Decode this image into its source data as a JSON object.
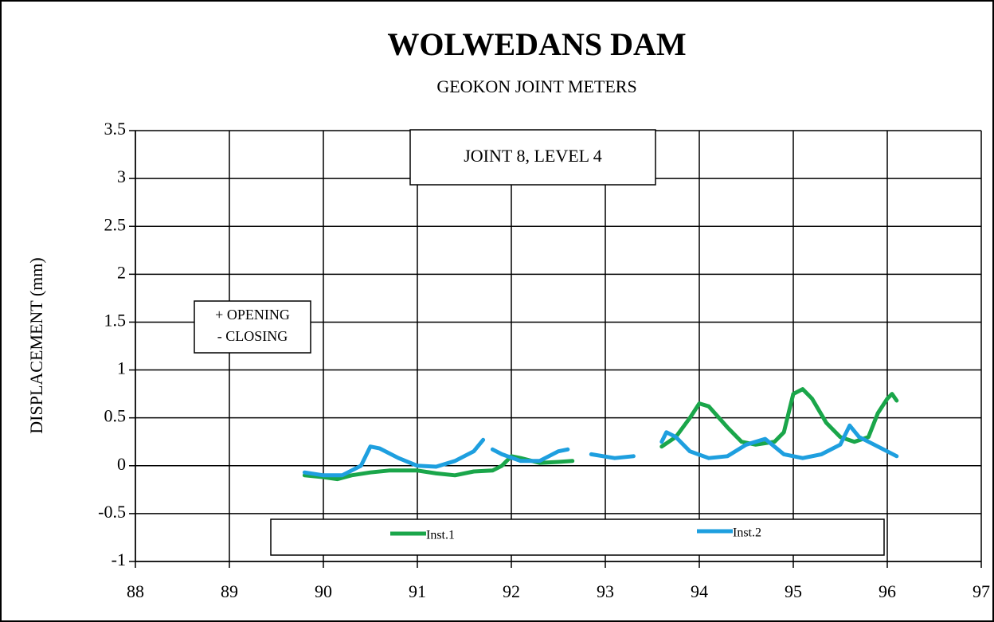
{
  "chart_data": {
    "type": "line",
    "title": "WOLWEDANS DAM",
    "subtitle": "GEOKON JOINT METERS",
    "ylabel": "DISPLACEMENT (mm)",
    "annotations": [
      "JOINT 8, LEVEL 4",
      "+ OPENING",
      "- CLOSING"
    ],
    "xlim": [
      88,
      97
    ],
    "xticks": [
      88,
      89,
      90,
      91,
      92,
      93,
      94,
      95,
      96,
      97
    ],
    "ylim": [
      -1,
      3.5
    ],
    "yticks": [
      -1,
      -0.5,
      0,
      0.5,
      1,
      1.5,
      2,
      2.5,
      3,
      3.5
    ],
    "grid": true,
    "series": [
      {
        "name": "Inst.1",
        "color": "#1aa64a",
        "x": [
          89.8,
          90.0,
          90.15,
          90.3,
          90.5,
          90.7,
          91.0,
          91.2,
          91.4,
          91.6,
          91.8,
          91.9,
          92.0,
          92.1,
          92.3,
          92.5,
          92.65,
          null,
          93.6,
          93.75,
          93.9,
          94.0,
          94.1,
          94.3,
          94.45,
          94.6,
          94.8,
          94.9,
          95.0,
          95.1,
          95.2,
          95.35,
          95.5,
          95.65,
          95.8,
          95.9,
          96.0,
          96.05,
          96.1
        ],
        "values": [
          -0.1,
          -0.12,
          -0.14,
          -0.1,
          -0.07,
          -0.05,
          -0.05,
          -0.08,
          -0.1,
          -0.06,
          -0.05,
          0.0,
          0.1,
          0.08,
          0.03,
          0.04,
          0.05,
          null,
          0.2,
          0.3,
          0.5,
          0.65,
          0.62,
          0.4,
          0.25,
          0.22,
          0.25,
          0.35,
          0.75,
          0.8,
          0.7,
          0.45,
          0.3,
          0.25,
          0.3,
          0.55,
          0.7,
          0.75,
          0.68
        ]
      },
      {
        "name": "Inst.2",
        "color": "#1e9fdf",
        "x": [
          89.8,
          90.0,
          90.2,
          90.4,
          90.5,
          90.6,
          90.8,
          91.0,
          91.2,
          91.4,
          91.6,
          91.7,
          null,
          91.8,
          91.9,
          92.1,
          92.3,
          92.5,
          92.6,
          null,
          92.85,
          93.1,
          93.3,
          null,
          93.6,
          93.65,
          93.75,
          93.9,
          94.1,
          94.3,
          94.5,
          94.7,
          94.9,
          95.1,
          95.3,
          95.5,
          95.6,
          95.7,
          95.9,
          96.1
        ],
        "values": [
          -0.07,
          -0.1,
          -0.1,
          0.0,
          0.2,
          0.18,
          0.08,
          0.0,
          -0.01,
          0.05,
          0.15,
          0.27,
          null,
          0.17,
          0.12,
          0.05,
          0.05,
          0.15,
          0.17,
          null,
          0.12,
          0.08,
          0.1,
          null,
          0.25,
          0.35,
          0.3,
          0.15,
          0.08,
          0.1,
          0.22,
          0.28,
          0.12,
          0.08,
          0.12,
          0.22,
          0.42,
          0.3,
          0.2,
          0.1
        ]
      }
    ]
  }
}
